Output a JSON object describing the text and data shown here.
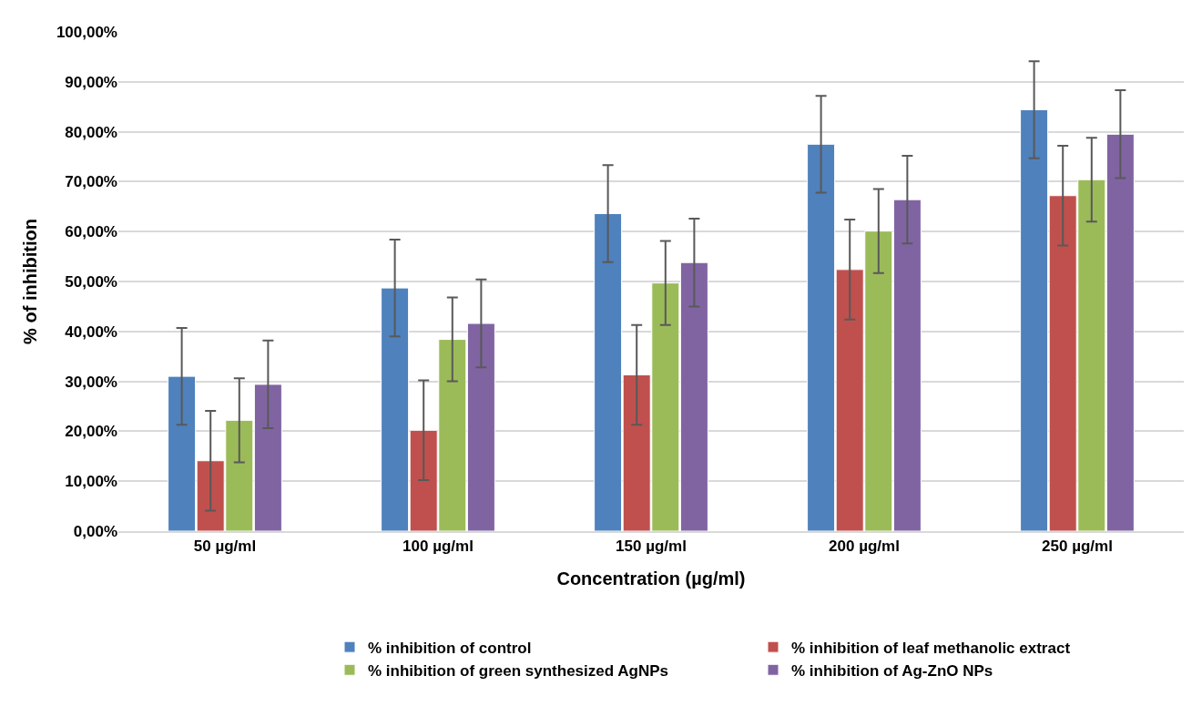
{
  "chart_data": {
    "type": "bar",
    "xlabel": "Concentration (µg/ml)",
    "ylabel": "% of inhibition",
    "categories": [
      "50 µg/ml",
      "100 µg/ml",
      "150 µg/ml",
      "200 µg/ml",
      "250 µg/ml"
    ],
    "series": [
      {
        "name": "% inhibition of control",
        "color": "#4f81bd",
        "values": [
          31.0,
          48.7,
          63.6,
          77.5,
          84.4
        ],
        "errors": [
          9.7,
          9.7,
          9.7,
          9.7,
          9.7
        ]
      },
      {
        "name": "% inhibition of leaf methanolic extract",
        "color": "#c0504d",
        "values": [
          14.1,
          20.2,
          31.3,
          52.4,
          67.2
        ],
        "errors": [
          10,
          10,
          10,
          10,
          10
        ]
      },
      {
        "name": "% inhibition of green synthesized AgNPs",
        "color": "#9bbb59",
        "values": [
          22.2,
          38.4,
          49.7,
          60.1,
          70.4
        ],
        "errors": [
          8.4,
          8.4,
          8.4,
          8.4,
          8.4
        ]
      },
      {
        "name": "% inhibition of Ag-ZnO NPs",
        "color": "#8064a2",
        "values": [
          29.4,
          41.6,
          53.8,
          66.4,
          79.5
        ],
        "errors": [
          8.8,
          8.8,
          8.8,
          8.8,
          8.8
        ]
      }
    ],
    "ylim": [
      0,
      100
    ],
    "yticks": [
      {
        "value": 0,
        "label": "0,00%"
      },
      {
        "value": 10,
        "label": "10,00%"
      },
      {
        "value": 20,
        "label": "20,00%"
      },
      {
        "value": 30,
        "label": "30,00%"
      },
      {
        "value": 40,
        "label": "40,00%"
      },
      {
        "value": 50,
        "label": "50,00%"
      },
      {
        "value": 60,
        "label": "60,00%"
      },
      {
        "value": 70,
        "label": "70,00%"
      },
      {
        "value": 80,
        "label": "80,00%"
      },
      {
        "value": 90,
        "label": "90,00%"
      },
      {
        "value": 100,
        "label": "100,00%"
      }
    ],
    "grid": "y",
    "legend": "bottom"
  }
}
